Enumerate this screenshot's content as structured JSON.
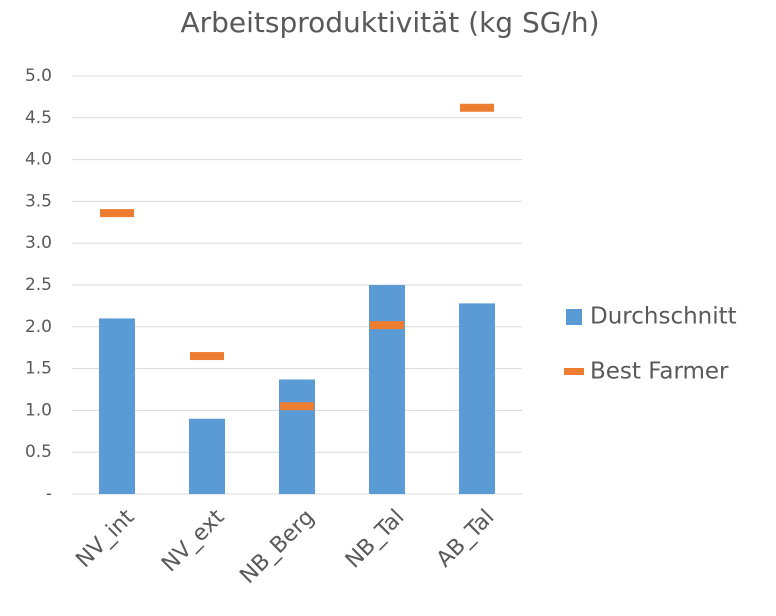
{
  "chart_data": {
    "type": "bar",
    "title": "Arbeitsproduktivität (kg SG/h)",
    "categories": [
      "NV_int",
      "NV_ext",
      "NB_Berg",
      "NB_Tal",
      "AB_Tal"
    ],
    "series": [
      {
        "name": "Durchschnitt",
        "color": "#5b9bd5",
        "marker": "bar",
        "values": [
          2.1,
          0.9,
          1.37,
          2.5,
          2.28
        ]
      },
      {
        "name": "Best Farmer",
        "color": "#ed7d31",
        "marker": "dash",
        "values": [
          3.36,
          1.65,
          1.05,
          2.02,
          4.62
        ]
      }
    ],
    "ylim": [
      0,
      5
    ],
    "yticks": [
      {
        "value": 0,
        "label": "-"
      },
      {
        "value": 0.5,
        "label": "0.5"
      },
      {
        "value": 1,
        "label": "1.0"
      },
      {
        "value": 1.5,
        "label": "1.5"
      },
      {
        "value": 2,
        "label": "2.0"
      },
      {
        "value": 2.5,
        "label": "2.5"
      },
      {
        "value": 3,
        "label": "3.0"
      },
      {
        "value": 3.5,
        "label": "3.5"
      },
      {
        "value": 4,
        "label": "4.0"
      },
      {
        "value": 4.5,
        "label": "4.5"
      },
      {
        "value": 5,
        "label": "5.0"
      }
    ],
    "grid": true,
    "legend": "right"
  }
}
